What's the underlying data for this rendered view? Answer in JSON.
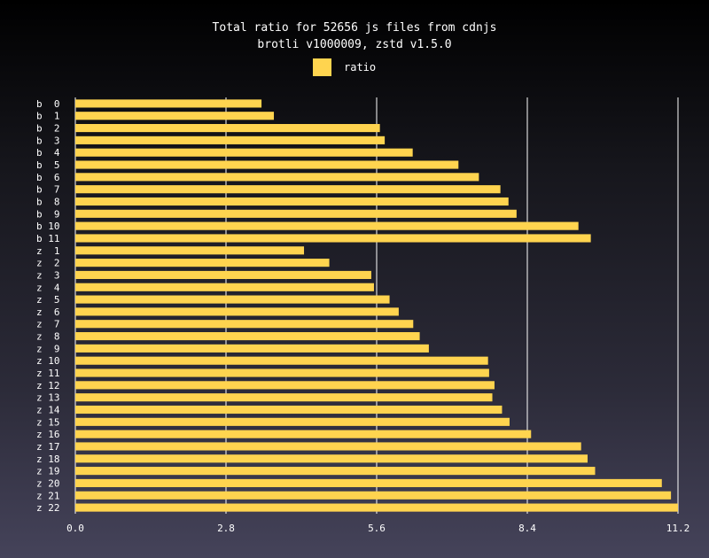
{
  "chart_data": {
    "type": "bar",
    "orientation": "horizontal",
    "title": "Total ratio for 52656 js files from cdnjs",
    "subtitle": "brotli v1000009, zstd v1.5.0",
    "xlabel": "",
    "ylabel": "",
    "xlim": [
      0,
      11.2
    ],
    "x_ticks": [
      "0.0",
      "2.8",
      "5.6",
      "8.4",
      "11.2"
    ],
    "grid": true,
    "legend_position": "top-center",
    "bar_color": "#ffd44f",
    "grid_color": "#ffffff",
    "categories": [
      "b  0",
      "b  1",
      "b  2",
      "b  3",
      "b  4",
      "b  5",
      "b  6",
      "b  7",
      "b  8",
      "b  9",
      "b 10",
      "b 11",
      "z  1",
      "z  2",
      "z  3",
      "z  4",
      "z  5",
      "z  6",
      "z  7",
      "z  8",
      "z  9",
      "z 10",
      "z 11",
      "z 12",
      "z 13",
      "z 14",
      "z 15",
      "z 16",
      "z 17",
      "z 18",
      "z 19",
      "z 20",
      "z 21",
      "z 22"
    ],
    "series": [
      {
        "name": "ratio",
        "values": [
          3.46,
          3.69,
          5.66,
          5.75,
          6.27,
          7.12,
          7.5,
          7.9,
          8.05,
          8.2,
          9.35,
          9.58,
          4.25,
          4.72,
          5.5,
          5.55,
          5.84,
          6.01,
          6.28,
          6.4,
          6.57,
          7.67,
          7.69,
          7.79,
          7.75,
          7.93,
          8.07,
          8.47,
          9.4,
          9.52,
          9.66,
          10.9,
          11.07,
          11.2
        ]
      }
    ]
  }
}
